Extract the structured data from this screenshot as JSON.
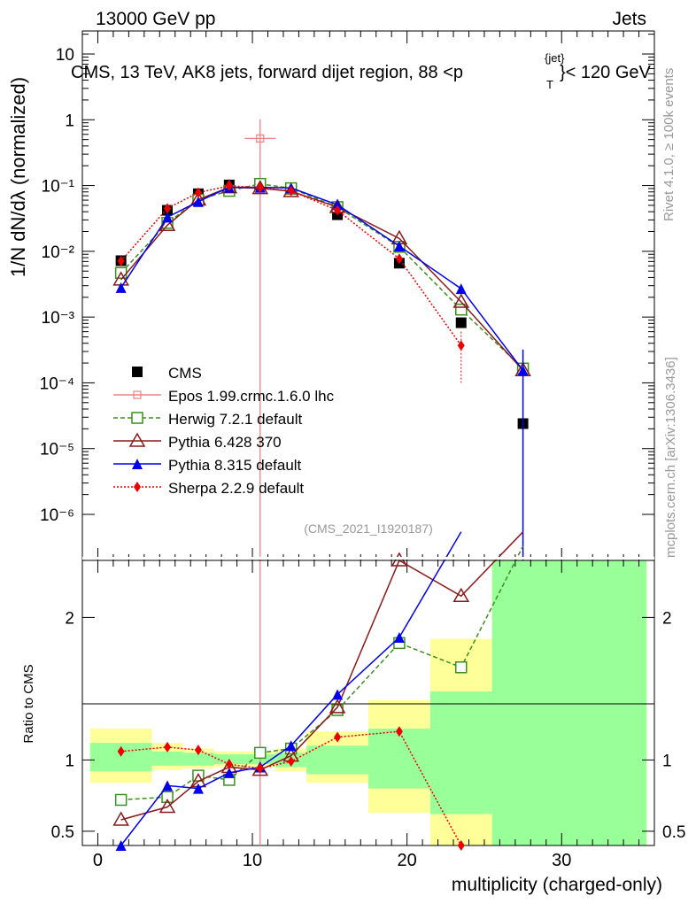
{
  "header": {
    "left": "13000 GeV pp",
    "right": "Jets",
    "plot_title": "CMS, 13 TeV, AK8 jets, forward dijet region, 88 <p",
    "plot_title_sup": "{jet}",
    "plot_title_sub": "T",
    "plot_title_end": "}< 120 GeV",
    "side_rivet": "Rivet 4.1.0, ≥ 100k events",
    "side_mcplots": "mcplots.cern.ch [arXiv:1306.3436]",
    "analysis_id": "(CMS_2021_I1920187)"
  },
  "axes": {
    "ylabel_main": "1/N dN/dλ (normalized)",
    "ylabel_ratio": "Ratio to CMS",
    "xlabel": "multiplicity (charged-only)",
    "x_ticks": [
      "0",
      "10",
      "20",
      "30"
    ],
    "x_tick_values": [
      0,
      10,
      20,
      30
    ],
    "y_main_ticks": [
      {
        "v": -6,
        "label": "10⁻⁶"
      },
      {
        "v": -5,
        "label": "10⁻⁵"
      },
      {
        "v": -4,
        "label": "10⁻⁴"
      },
      {
        "v": -3,
        "label": "10⁻³"
      },
      {
        "v": -2,
        "label": "10⁻²"
      },
      {
        "v": -1,
        "label": "10⁻¹"
      },
      {
        "v": 0,
        "label": "1"
      },
      {
        "v": 1,
        "label": "10"
      }
    ],
    "y_ratio_ticks": [
      "0.5",
      "1",
      "2"
    ],
    "y_ratio_tick_values": [
      0.5,
      1,
      2
    ]
  },
  "legend": [
    {
      "label": "CMS",
      "color": "#000000",
      "marker": "square",
      "dash": ""
    },
    {
      "label": "Epos 1.99.crmc.1.6.0 lhc",
      "color": "#f08080",
      "marker": "cross",
      "dash": ""
    },
    {
      "label": "Herwig 7.2.1 default",
      "color": "#3a8f1e",
      "marker": "open-square",
      "dash": "5,3"
    },
    {
      "label": "Pythia 6.428 370",
      "color": "#8b1a1a",
      "marker": "open-triangle",
      "dash": ""
    },
    {
      "label": "Pythia 8.315 default",
      "color": "#0000ee",
      "marker": "triangle",
      "dash": ""
    },
    {
      "label": "Sherpa 2.2.9 default",
      "color": "#ee0000",
      "marker": "diamond",
      "dash": "2,2"
    }
  ],
  "chart_data": {
    "type": "line",
    "title": "CMS, 13 TeV, AK8 jets, forward dijet region, 88 < pT jet < 120 GeV",
    "xlabel": "multiplicity (charged-only)",
    "ylabel": "1/N dN/dλ",
    "xlim": [
      -1,
      36
    ],
    "ylim_main_log10": [
      -6.7,
      1.35
    ],
    "ylim_ratio": [
      0.4,
      2.4
    ],
    "bin_edges": [
      -0.5,
      3.5,
      5.5,
      7.5,
      9.5,
      11.5,
      13.5,
      17.5,
      21.5,
      25.5,
      35.5
    ],
    "x": [
      1.5,
      4.5,
      6.5,
      8.5,
      10.5,
      12.5,
      15.5,
      19.5,
      23.5,
      27.5
    ],
    "series": [
      {
        "name": "CMS",
        "values": [
          0.0072,
          0.042,
          0.075,
          0.102,
          0.102,
          0.088,
          0.036,
          0.0066,
          0.00082,
          2.4e-05
        ]
      },
      {
        "name": "Epos 1.99.crmc.1.6.0 lhc",
        "values": [
          null,
          null,
          null,
          null,
          0.52,
          null,
          null,
          null,
          null,
          null
        ],
        "err_up": [
          null,
          null,
          null,
          null,
          0.5,
          null,
          null,
          null,
          null,
          null
        ],
        "err_down": [
          null,
          null,
          null,
          null,
          0.52,
          null,
          null,
          null,
          null,
          null
        ]
      },
      {
        "name": "Herwig 7.2.1 default",
        "values": [
          0.0047,
          0.027,
          0.061,
          0.083,
          0.106,
          0.091,
          0.047,
          0.0117,
          0.0013,
          0.000165
        ]
      },
      {
        "name": "Pythia 6.428 370",
        "values": [
          0.0037,
          0.025,
          0.061,
          0.094,
          0.091,
          0.082,
          0.047,
          0.0157,
          0.0017,
          0.000155
        ]
      },
      {
        "name": "Pythia 8.315 default",
        "values": [
          0.0028,
          0.033,
          0.057,
          0.094,
          0.094,
          0.092,
          0.051,
          0.012,
          0.0027,
          0.000155
        ]
      },
      {
        "name": "Sherpa 2.2.9 default",
        "values": [
          0.0071,
          0.045,
          0.078,
          0.099,
          0.093,
          0.083,
          0.042,
          0.0077,
          0.00037,
          null
        ]
      }
    ],
    "ratio_series": [
      {
        "name": "Herwig 7.2.1 default",
        "values": [
          0.72,
          0.74,
          0.89,
          0.86,
          1.05,
          1.08,
          1.35,
          1.82,
          1.65,
          2.5
        ]
      },
      {
        "name": "Pythia 6.428 370",
        "values": [
          0.58,
          0.67,
          0.85,
          0.95,
          0.93,
          1.03,
          1.37,
          2.4,
          2.15,
          2.6
        ]
      },
      {
        "name": "Pythia 8.315 default",
        "values": [
          0.38,
          0.82,
          0.8,
          0.91,
          0.95,
          1.1,
          1.46,
          1.86,
          2.6,
          null
        ]
      },
      {
        "name": "Sherpa 2.2.9 default",
        "values": [
          1.06,
          1.09,
          1.07,
          0.97,
          0.94,
          0.99,
          1.16,
          1.2,
          0.39,
          null
        ]
      }
    ],
    "ratio_band_yellow": [
      [
        0.84,
        1.22
      ],
      [
        0.93,
        1.12
      ],
      [
        0.94,
        1.08
      ],
      [
        0.95,
        1.06
      ],
      [
        0.95,
        1.06
      ],
      [
        0.92,
        1.08
      ],
      [
        0.84,
        1.2
      ],
      [
        0.63,
        1.42
      ],
      [
        0.35,
        1.85
      ],
      [
        0.35,
        2.4
      ]
    ],
    "ratio_band_green": [
      [
        0.92,
        1.12
      ],
      [
        0.96,
        1.06
      ],
      [
        0.96,
        1.05
      ],
      [
        0.97,
        1.04
      ],
      [
        0.97,
        1.04
      ],
      [
        0.95,
        1.05
      ],
      [
        0.9,
        1.1
      ],
      [
        0.8,
        1.22
      ],
      [
        0.62,
        1.48
      ],
      [
        0.35,
        2.4
      ]
    ]
  }
}
